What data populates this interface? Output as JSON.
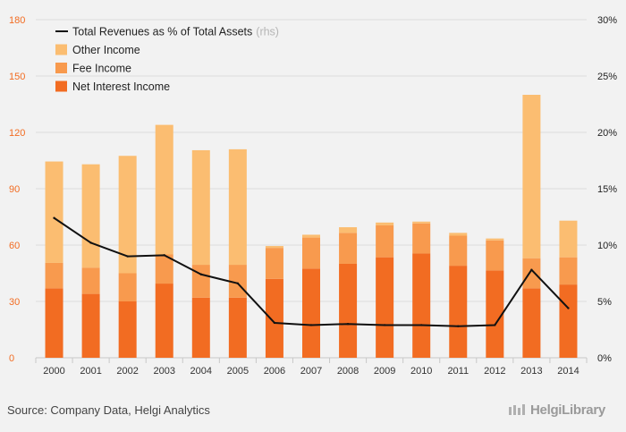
{
  "chart_data": {
    "type": "bar",
    "stacked": true,
    "categories": [
      "2000",
      "2001",
      "2002",
      "2003",
      "2004",
      "2005",
      "2006",
      "2007",
      "2008",
      "2009",
      "2010",
      "2011",
      "2012",
      "2013",
      "2014"
    ],
    "series": [
      {
        "name": "Net Interest Income",
        "kind": "bar",
        "axis": "left",
        "color": "#f26c22",
        "values": [
          37,
          34,
          30,
          39.5,
          32,
          32,
          42,
          47.5,
          50,
          53.5,
          55.5,
          49,
          46.5,
          37,
          39
        ]
      },
      {
        "name": "Fee Income",
        "kind": "bar",
        "axis": "left",
        "color": "#f89a4e",
        "values": [
          13.5,
          14,
          15,
          15.5,
          17.5,
          17.5,
          16.5,
          16.5,
          16.5,
          17,
          16,
          16,
          16,
          16,
          14.5
        ]
      },
      {
        "name": "Other Income",
        "kind": "bar",
        "axis": "left",
        "color": "#fbbd71",
        "values": [
          54,
          55,
          62.5,
          69,
          61,
          61.5,
          1,
          1.5,
          3,
          1.5,
          1,
          1.5,
          1,
          87,
          19.5
        ]
      },
      {
        "name": "Total Revenues as % of Total Assets",
        "note": "(rhs)",
        "kind": "line",
        "axis": "right",
        "color": "#111111",
        "values": [
          12.4,
          10.2,
          9.0,
          9.1,
          7.4,
          6.6,
          3.1,
          2.9,
          3.0,
          2.9,
          2.9,
          2.8,
          2.9,
          7.8,
          4.4
        ]
      }
    ],
    "legend_order": [
      3,
      2,
      1,
      0
    ],
    "legend_position": "top-left",
    "y_left": {
      "range": [
        0,
        180
      ],
      "ticks": [
        "0",
        "30",
        "60",
        "90",
        "120",
        "150",
        "180"
      ],
      "color": "#f26c22"
    },
    "y_right": {
      "range": [
        0,
        30
      ],
      "ticks": [
        "0%",
        "5%",
        "10%",
        "15%",
        "20%",
        "25%",
        "30%"
      ],
      "color": "#222222"
    },
    "grid": true,
    "title": "",
    "xlabel": "",
    "ylabel": ""
  },
  "source": "Source: Company Data, Helgi Analytics",
  "brand": "HelgiLibrary"
}
